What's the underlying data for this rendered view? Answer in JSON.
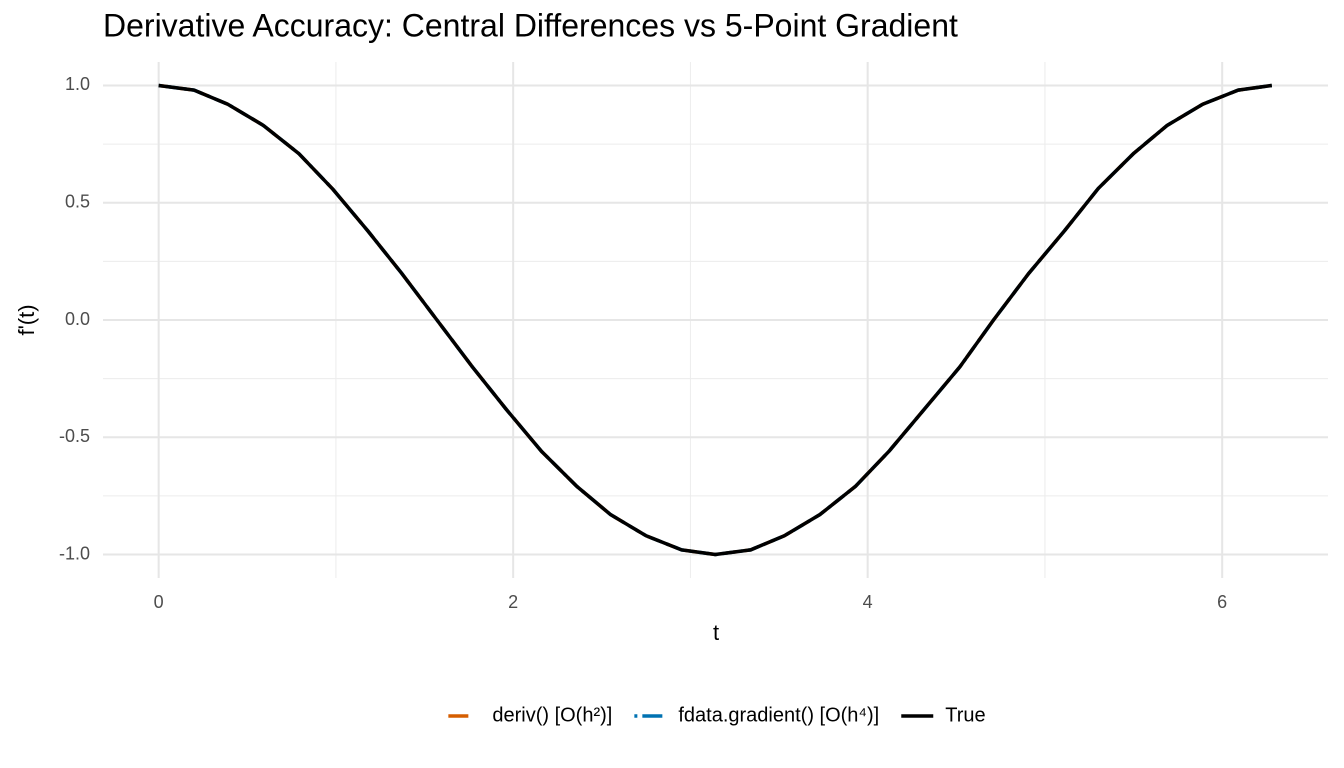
{
  "chart_data": {
    "type": "line",
    "title": "Derivative Accuracy: Central Differences vs 5-Point Gradient",
    "x_label": "t",
    "y_label": "f'(t)",
    "x": [
      0,
      0.2,
      0.39,
      0.59,
      0.79,
      0.98,
      1.18,
      1.37,
      1.57,
      1.77,
      1.96,
      2.16,
      2.36,
      2.55,
      2.75,
      2.95,
      3.14,
      3.34,
      3.53,
      3.73,
      3.93,
      4.12,
      4.32,
      4.52,
      4.71,
      4.91,
      5.11,
      5.3,
      5.5,
      5.69,
      5.89,
      6.09,
      6.28
    ],
    "series": [
      {
        "name": "deriv() [O(h²)]",
        "color": "#D55E00",
        "dash": "12 8",
        "values": [
          1.0,
          0.98,
          0.92,
          0.83,
          0.71,
          0.56,
          0.38,
          0.2,
          0.0,
          -0.2,
          -0.38,
          -0.56,
          -0.71,
          -0.83,
          -0.92,
          -0.98,
          -1.0,
          -0.98,
          -0.92,
          -0.83,
          -0.71,
          -0.56,
          -0.38,
          -0.2,
          0.0,
          0.2,
          0.38,
          0.56,
          0.71,
          0.83,
          0.92,
          0.98,
          1.0
        ]
      },
      {
        "name": "fdata.gradient() [O(h⁴)]",
        "color": "#0072B2",
        "dash": "3 5 12 5",
        "values": [
          1.0,
          0.98,
          0.92,
          0.83,
          0.71,
          0.56,
          0.38,
          0.2,
          0.0,
          -0.2,
          -0.38,
          -0.56,
          -0.71,
          -0.83,
          -0.92,
          -0.98,
          -1.0,
          -0.98,
          -0.92,
          -0.83,
          -0.71,
          -0.56,
          -0.38,
          -0.2,
          0.0,
          0.2,
          0.38,
          0.56,
          0.71,
          0.83,
          0.92,
          0.98,
          1.0
        ]
      },
      {
        "name": "True",
        "color": "#000000",
        "dash": "none",
        "values": [
          1.0,
          0.98,
          0.92,
          0.83,
          0.71,
          0.56,
          0.38,
          0.2,
          0.0,
          -0.2,
          -0.38,
          -0.56,
          -0.71,
          -0.83,
          -0.92,
          -0.98,
          -1.0,
          -0.98,
          -0.92,
          -0.83,
          -0.71,
          -0.56,
          -0.38,
          -0.2,
          0.0,
          0.2,
          0.38,
          0.56,
          0.71,
          0.83,
          0.92,
          0.98,
          1.0
        ]
      }
    ],
    "xlim": [
      -0.314,
      6.597
    ],
    "ylim": [
      -1.1,
      1.1
    ],
    "xticks": [
      0,
      2,
      4,
      6
    ],
    "yticks": [
      {
        "value": -1,
        "label": "-1.0"
      },
      -0.5,
      {
        "value": 0,
        "label": "0.0"
      },
      0.5,
      {
        "value": 1,
        "label": "1.0"
      }
    ],
    "xminor": [
      1,
      3,
      5
    ],
    "yminor": [
      -0.75,
      -0.25,
      0.25,
      0.75
    ],
    "grid": true,
    "legend": "bottom"
  }
}
